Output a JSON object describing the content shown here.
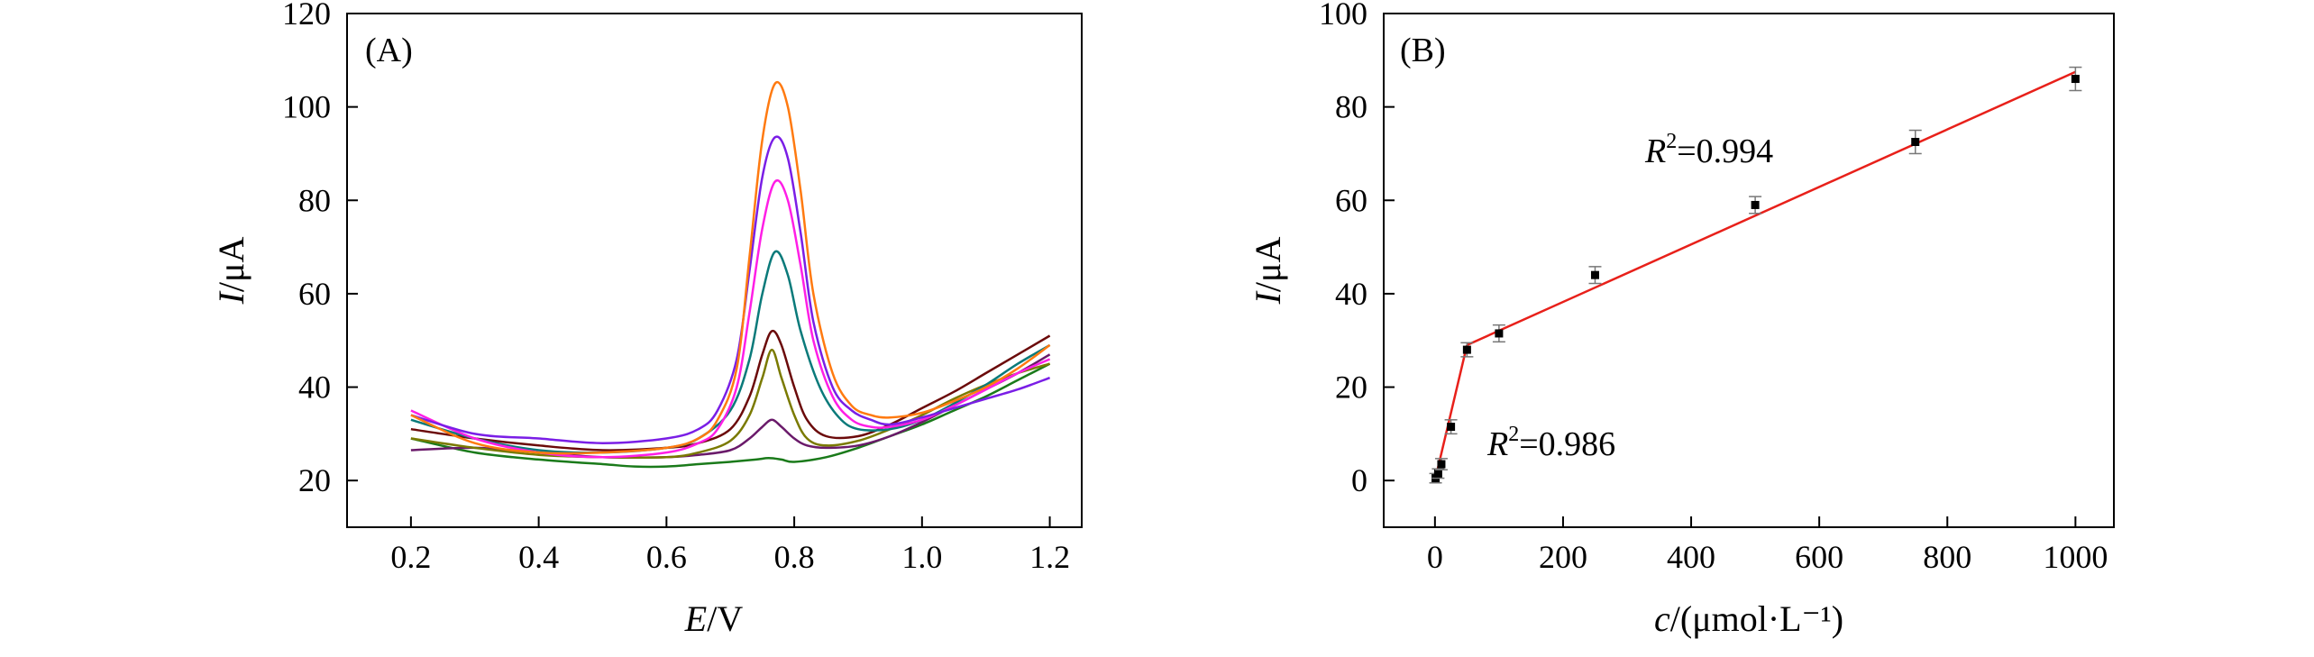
{
  "chart_data": [
    {
      "panel": "(A)",
      "type": "line",
      "xlabel_var": "E",
      "xlabel_unit": "/V",
      "ylabel_var": "I",
      "ylabel_unit": "/μA",
      "xlim": [
        0.1,
        1.25
      ],
      "ylim": [
        10,
        120
      ],
      "xticks": [
        "0.2",
        "0.4",
        "0.6",
        "0.8",
        "1.0",
        "1.2"
      ],
      "yticks": [
        "20",
        "40",
        "60",
        "80",
        "100",
        "120"
      ],
      "grid": false,
      "series": [
        {
          "name": "curve-1",
          "color": "#1a7a1a",
          "x": [
            0.2,
            0.3,
            0.4,
            0.5,
            0.55,
            0.6,
            0.65,
            0.7,
            0.74,
            0.76,
            0.78,
            0.8,
            0.85,
            0.9,
            0.95,
            1.0,
            1.05,
            1.1,
            1.15,
            1.2
          ],
          "y": [
            29,
            26,
            24.5,
            23.5,
            23,
            23,
            23.5,
            24,
            24.5,
            24.8,
            24.5,
            24,
            25,
            27,
            29.5,
            32,
            35,
            38,
            41.5,
            45
          ]
        },
        {
          "name": "curve-2",
          "color": "#6a1a6a",
          "x": [
            0.2,
            0.3,
            0.4,
            0.5,
            0.6,
            0.65,
            0.7,
            0.73,
            0.75,
            0.765,
            0.78,
            0.8,
            0.82,
            0.85,
            0.9,
            0.95,
            1.0,
            1.05,
            1.1,
            1.15,
            1.2
          ],
          "y": [
            26.5,
            27,
            26,
            25,
            25,
            25.5,
            26.5,
            29,
            31.5,
            33,
            31.5,
            29,
            27.5,
            27,
            27.5,
            29.5,
            32.5,
            36,
            39.5,
            43,
            47
          ]
        },
        {
          "name": "curve-3",
          "color": "#7a7a00",
          "x": [
            0.2,
            0.3,
            0.4,
            0.5,
            0.6,
            0.65,
            0.7,
            0.73,
            0.75,
            0.765,
            0.78,
            0.8,
            0.82,
            0.85,
            0.9,
            0.95,
            1.0,
            1.05,
            1.1,
            1.15,
            1.2
          ],
          "y": [
            29,
            27,
            25.5,
            25,
            25,
            26,
            28.5,
            34,
            42,
            48,
            42,
            34,
            29,
            27.5,
            28.5,
            31,
            34,
            37.5,
            40.5,
            43,
            45
          ]
        },
        {
          "name": "curve-4",
          "color": "#6b0a0a",
          "x": [
            0.2,
            0.3,
            0.4,
            0.5,
            0.6,
            0.65,
            0.7,
            0.73,
            0.75,
            0.765,
            0.78,
            0.8,
            0.82,
            0.85,
            0.9,
            0.95,
            1.0,
            1.05,
            1.1,
            1.15,
            1.2
          ],
          "y": [
            31,
            29,
            27.5,
            26.5,
            27,
            28,
            31,
            38,
            47,
            52,
            49,
            40,
            33,
            29.5,
            29.5,
            32,
            35.5,
            39,
            43,
            47,
            51
          ]
        },
        {
          "name": "curve-5",
          "color": "#0a7a7a",
          "x": [
            0.2,
            0.3,
            0.4,
            0.5,
            0.6,
            0.65,
            0.7,
            0.73,
            0.75,
            0.77,
            0.79,
            0.81,
            0.84,
            0.87,
            0.9,
            0.95,
            1.0,
            1.05,
            1.1,
            1.15,
            1.2
          ],
          "y": [
            33,
            29,
            26.5,
            26,
            27,
            29,
            35,
            46,
            60,
            69,
            64,
            52,
            40,
            33.5,
            31,
            31,
            33,
            36.5,
            40.5,
            45,
            49
          ]
        },
        {
          "name": "curve-6",
          "color": "#ff1ee6",
          "x": [
            0.2,
            0.3,
            0.4,
            0.5,
            0.6,
            0.65,
            0.68,
            0.71,
            0.73,
            0.75,
            0.77,
            0.79,
            0.81,
            0.83,
            0.86,
            0.89,
            0.92,
            0.95,
            1.0,
            1.05,
            1.1,
            1.15,
            1.2
          ],
          "y": [
            35,
            29,
            26,
            25,
            26,
            28,
            31,
            40,
            56,
            74,
            84,
            80,
            66,
            50,
            38,
            33,
            31.5,
            31.5,
            33,
            36,
            39.5,
            43,
            46
          ]
        },
        {
          "name": "curve-7",
          "color": "#7a1ee6",
          "x": [
            0.2,
            0.3,
            0.4,
            0.5,
            0.6,
            0.65,
            0.68,
            0.71,
            0.73,
            0.75,
            0.77,
            0.79,
            0.81,
            0.83,
            0.86,
            0.89,
            0.92,
            0.95,
            1.0,
            1.05,
            1.1,
            1.15,
            1.2
          ],
          "y": [
            34,
            30,
            29,
            28,
            29,
            31,
            35,
            46,
            65,
            85,
            93.5,
            89,
            73,
            54,
            40,
            35,
            33,
            32,
            33.5,
            35.5,
            37.5,
            39.5,
            42
          ]
        },
        {
          "name": "curve-8",
          "color": "#ff7a10",
          "x": [
            0.2,
            0.3,
            0.4,
            0.5,
            0.6,
            0.65,
            0.68,
            0.71,
            0.73,
            0.75,
            0.77,
            0.79,
            0.81,
            0.83,
            0.86,
            0.89,
            0.92,
            0.95,
            1.0,
            1.05,
            1.1,
            1.15,
            1.2
          ],
          "y": [
            34,
            28,
            26,
            26,
            27,
            29,
            33,
            44,
            68,
            93,
            105,
            100,
            82,
            60,
            43,
            36,
            34,
            33.5,
            34.5,
            37,
            40,
            44,
            49
          ]
        }
      ]
    },
    {
      "panel": "(B)",
      "type": "scatter",
      "xlabel_var": "c",
      "xlabel_unit": "/(μmol·L⁻¹)",
      "ylabel_var": "I",
      "ylabel_unit": "/μA",
      "xlim": [
        -80,
        1060
      ],
      "ylim": [
        -10,
        100
      ],
      "xticks": [
        "0",
        "200",
        "400",
        "600",
        "800",
        "1000"
      ],
      "yticks": [
        "0",
        "20",
        "40",
        "60",
        "80",
        "100"
      ],
      "grid": false,
      "points": {
        "x": [
          1,
          5,
          10,
          25,
          50,
          100,
          250,
          500,
          750,
          1000
        ],
        "y": [
          0.5,
          1.5,
          3.5,
          11.5,
          28,
          31.5,
          44,
          59,
          72.5,
          86
        ],
        "err": [
          1,
          1,
          1.2,
          1.5,
          1.5,
          1.8,
          1.8,
          1.8,
          2.5,
          2.5
        ]
      },
      "fits": [
        {
          "name": "fit-low",
          "x": [
            0,
            50
          ],
          "y": [
            0,
            29
          ],
          "r2_var": "R",
          "r2_sup": "2",
          "r2_value": "=0.986"
        },
        {
          "name": "fit-high",
          "x": [
            50,
            1000
          ],
          "y": [
            29,
            87.5
          ],
          "r2_var": "R",
          "r2_sup": "2",
          "r2_value": "=0.994"
        }
      ],
      "fit_color": "#e8201a"
    }
  ]
}
